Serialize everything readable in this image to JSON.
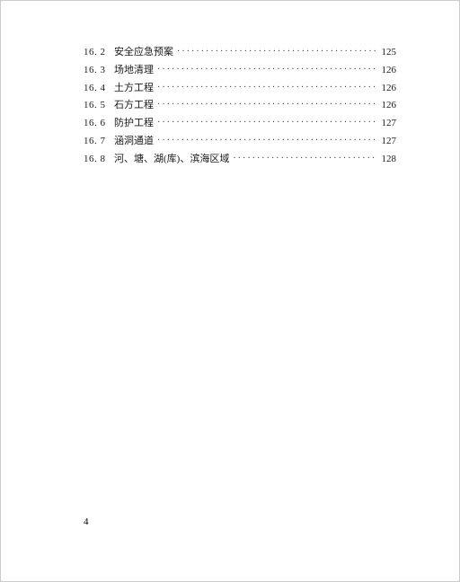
{
  "toc": {
    "entries": [
      {
        "num": "16. 2",
        "title": "安全应急预案",
        "page": "125"
      },
      {
        "num": "16. 3",
        "title": "场地清理",
        "page": "126"
      },
      {
        "num": "16. 4",
        "title": "土方工程",
        "page": "126"
      },
      {
        "num": "16. 5",
        "title": "石方工程",
        "page": "126"
      },
      {
        "num": "16. 6",
        "title": "防护工程",
        "page": "127"
      },
      {
        "num": "16. 7",
        "title": "涵洞通道",
        "page": "127"
      },
      {
        "num": "16. 8",
        "title": "河、塘、湖(库)、滨海区域",
        "page": "128"
      }
    ]
  },
  "page_number": "4",
  "style": {
    "text_color": "#1a1a1a",
    "background_color": "#ffffff",
    "font_size": 11,
    "leader_char": "·"
  }
}
